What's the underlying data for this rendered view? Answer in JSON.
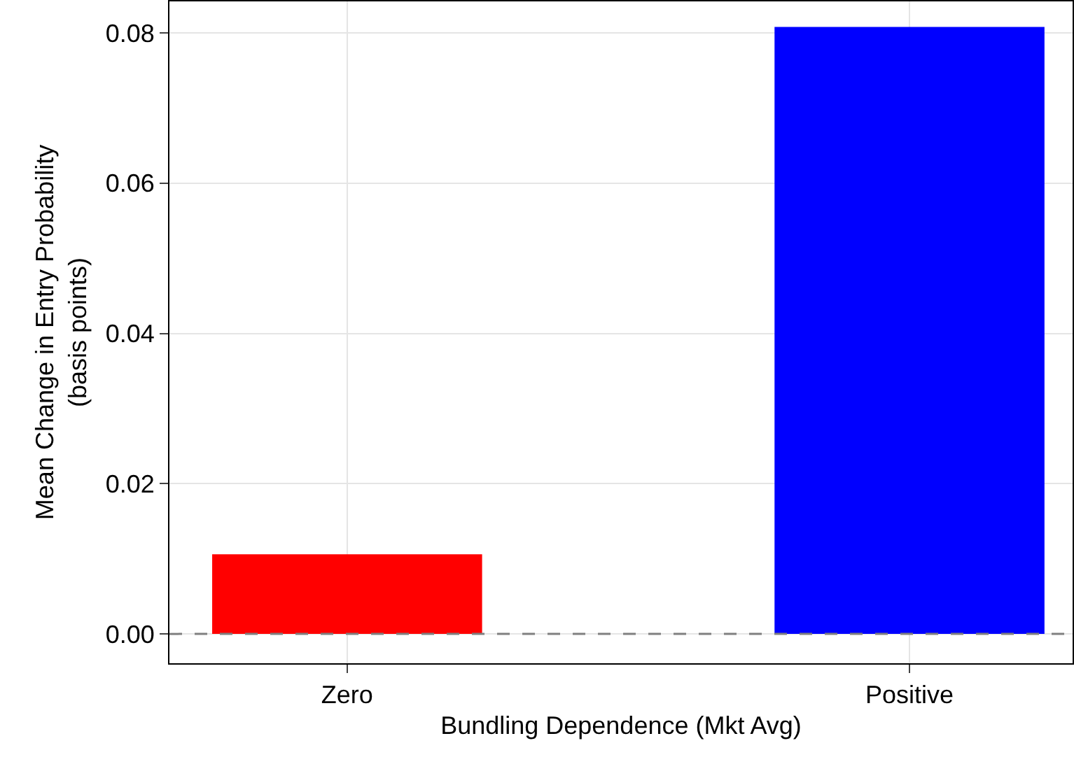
{
  "chart_data": {
    "type": "bar",
    "xlabel": "Bundling Dependence (Mkt Avg)",
    "ylabel": "Mean Change in Entry Probability\n(basis points)",
    "categories": [
      "Zero",
      "Positive"
    ],
    "values": [
      0.0106,
      0.0808
    ],
    "colors": [
      "#ff0000",
      "#0000ff"
    ],
    "ylim": [
      -0.0039,
      0.0842
    ],
    "yticks": [
      {
        "value": 0,
        "label": "0.00"
      },
      {
        "value": 0.02,
        "label": "0.02"
      },
      {
        "value": 0.04,
        "label": "0.04"
      },
      {
        "value": 0.06,
        "label": "0.06"
      },
      {
        "value": 0.08,
        "label": "0.08"
      }
    ],
    "grid": true,
    "ref_lines": [
      {
        "axis": "y",
        "value": 0,
        "color": "#808080",
        "line_style": "dashed"
      }
    ]
  }
}
